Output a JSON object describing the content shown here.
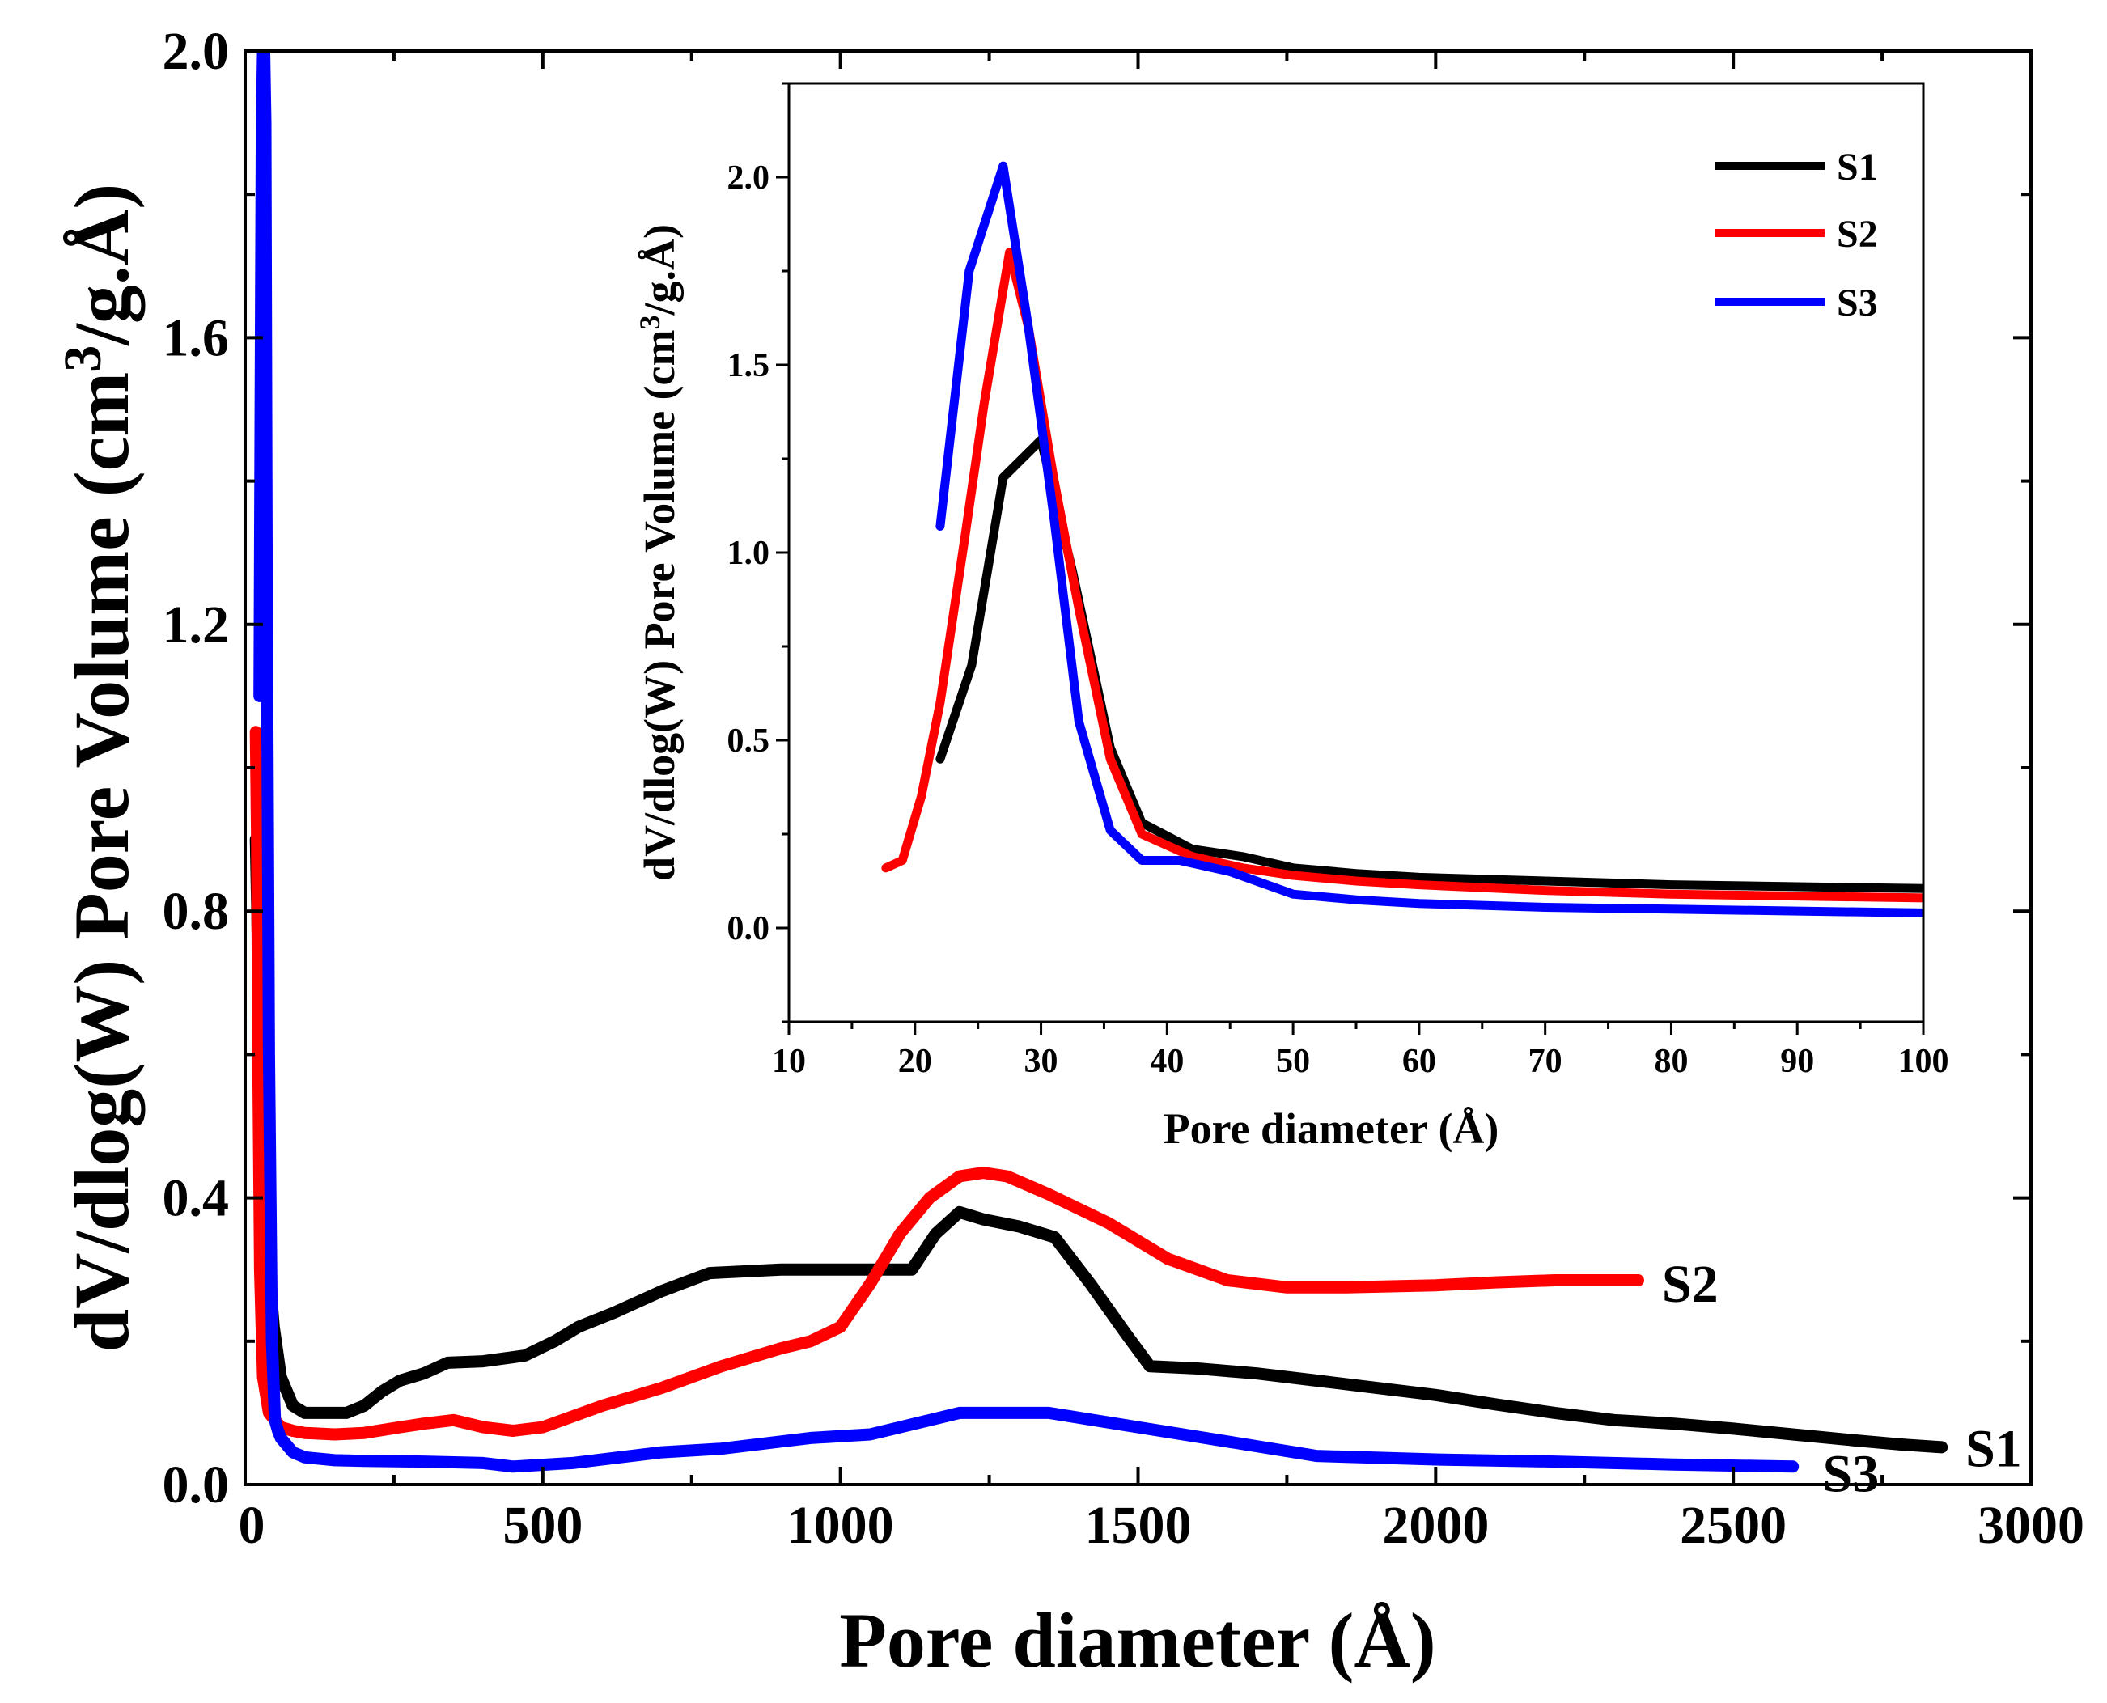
{
  "chart_data": [
    {
      "id": "main",
      "type": "line",
      "xlabel": "Pore diameter (Å)",
      "ylabel": "dV/dlog(W) Pore Volume (cm3/g.Å)",
      "ylabel_parts": {
        "pre": "dV/dlog(W) Pore Volume (cm",
        "sup": "3",
        "post": "/g.Å)"
      },
      "xlim": [
        0,
        3000
      ],
      "ylim": [
        0,
        2.0
      ],
      "xticks": [
        0,
        500,
        1000,
        1500,
        2000,
        2500,
        3000
      ],
      "xtick_labels": [
        "0",
        "500",
        "1000",
        "1500",
        "2000",
        "2500",
        "3000"
      ],
      "yticks": [
        0.0,
        0.4,
        0.8,
        1.2,
        1.6,
        2.0
      ],
      "ytick_labels": [
        "0.0",
        "0.4",
        "0.8",
        "1.2",
        "1.6",
        "2.0"
      ],
      "curve_labels": [
        {
          "series": "S2",
          "text": "S2",
          "at": [
            2380,
            0.28
          ]
        },
        {
          "series": "S1",
          "text": "S1",
          "at": [
            2890,
            0.05
          ]
        },
        {
          "series": "S3",
          "text": "S3",
          "at": [
            2650,
            0.015
          ]
        }
      ],
      "series": [
        {
          "name": "S1",
          "color": "#000000",
          "x": [
            18,
            25,
            32,
            40,
            48,
            60,
            80,
            100,
            170,
            200,
            230,
            260,
            300,
            340,
            400,
            470,
            520,
            560,
            620,
            700,
            780,
            900,
            1000,
            1120,
            1160,
            1200,
            1240,
            1300,
            1360,
            1420,
            1480,
            1520,
            1600,
            1700,
            1800,
            1900,
            2000,
            2100,
            2200,
            2300,
            2400,
            2500,
            2600,
            2700,
            2780,
            2850
          ],
          "y": [
            0.9,
            0.6,
            0.45,
            0.3,
            0.22,
            0.15,
            0.11,
            0.1,
            0.1,
            0.11,
            0.13,
            0.145,
            0.155,
            0.17,
            0.172,
            0.18,
            0.2,
            0.22,
            0.24,
            0.27,
            0.295,
            0.3,
            0.3,
            0.3,
            0.35,
            0.38,
            0.37,
            0.36,
            0.345,
            0.28,
            0.21,
            0.165,
            0.162,
            0.155,
            0.145,
            0.135,
            0.125,
            0.112,
            0.1,
            0.09,
            0.085,
            0.078,
            0.07,
            0.062,
            0.056,
            0.052
          ]
        },
        {
          "name": "S2",
          "color": "#ff0000",
          "x": [
            18,
            20,
            22,
            25,
            30,
            40,
            60,
            80,
            100,
            150,
            200,
            260,
            300,
            350,
            400,
            450,
            500,
            550,
            600,
            700,
            800,
            900,
            950,
            1000,
            1050,
            1100,
            1150,
            1200,
            1240,
            1280,
            1350,
            1450,
            1550,
            1650,
            1750,
            1850,
            2000,
            2100,
            2200,
            2340
          ],
          "y": [
            1.05,
            0.9,
            0.6,
            0.3,
            0.15,
            0.1,
            0.08,
            0.075,
            0.072,
            0.07,
            0.072,
            0.08,
            0.085,
            0.09,
            0.08,
            0.075,
            0.08,
            0.095,
            0.11,
            0.135,
            0.165,
            0.19,
            0.2,
            0.22,
            0.28,
            0.35,
            0.4,
            0.43,
            0.435,
            0.43,
            0.405,
            0.365,
            0.315,
            0.285,
            0.275,
            0.275,
            0.278,
            0.282,
            0.285,
            0.285
          ]
        },
        {
          "name": "S3",
          "color": "#0000ff",
          "x": [
            24,
            26,
            28,
            30,
            32,
            34,
            36,
            40,
            45,
            50,
            55,
            60,
            70,
            80,
            100,
            150,
            200,
            300,
            400,
            450,
            550,
            700,
            800,
            900,
            950,
            1050,
            1150,
            1200,
            1300,
            1350,
            1500,
            1650,
            1800,
            2000,
            2200,
            2400,
            2600
          ],
          "y": [
            1.1,
            1.5,
            1.9,
            2.0,
            2.0,
            1.9,
            1.3,
            0.6,
            0.2,
            0.09,
            0.075,
            0.065,
            0.055,
            0.045,
            0.038,
            0.034,
            0.033,
            0.032,
            0.03,
            0.025,
            0.03,
            0.045,
            0.05,
            0.06,
            0.065,
            0.07,
            0.09,
            0.1,
            0.1,
            0.1,
            0.08,
            0.06,
            0.04,
            0.035,
            0.032,
            0.028,
            0.025
          ]
        }
      ]
    },
    {
      "id": "inset",
      "type": "line",
      "xlabel": "Pore diameter (Å)",
      "ylabel": "dV/dlog(W) Pore Volume (cm3/g.Å)",
      "ylabel_parts": {
        "pre": "dV/dlog(W) Pore Volume (cm",
        "sup": "3",
        "post": "/g.Å)"
      },
      "xlim": [
        10,
        100
      ],
      "ylim": [
        -0.25,
        2.25
      ],
      "xticks": [
        10,
        20,
        30,
        40,
        50,
        60,
        70,
        80,
        90,
        100
      ],
      "xtick_labels": [
        "10",
        "20",
        "30",
        "40",
        "50",
        "60",
        "70",
        "80",
        "90",
        "100"
      ],
      "yticks": [
        0.0,
        0.5,
        1.0,
        1.5,
        2.0
      ],
      "ytick_labels": [
        "0.0",
        "0.5",
        "1.0",
        "1.5",
        "2.0"
      ],
      "legend": {
        "position": "top-right",
        "entries": [
          "S1",
          "S2",
          "S3"
        ]
      },
      "series": [
        {
          "name": "S1",
          "color": "#000000",
          "x": [
            22,
            24.5,
            27,
            30,
            32.5,
            35.5,
            38,
            42,
            46,
            50,
            55,
            60,
            70,
            80,
            90,
            100
          ],
          "y": [
            0.45,
            0.7,
            1.2,
            1.3,
            0.95,
            0.48,
            0.28,
            0.21,
            0.19,
            0.16,
            0.145,
            0.135,
            0.125,
            0.115,
            0.11,
            0.105
          ]
        },
        {
          "name": "S2",
          "color": "#ff0000",
          "x": [
            17.7,
            19,
            20.5,
            22,
            24,
            25.5,
            27.5,
            29,
            31,
            33,
            35.5,
            38,
            42,
            46,
            50,
            55,
            60,
            70,
            80,
            90,
            100
          ],
          "y": [
            0.16,
            0.18,
            0.35,
            0.6,
            1.05,
            1.4,
            1.8,
            1.6,
            1.2,
            0.85,
            0.45,
            0.25,
            0.19,
            0.16,
            0.14,
            0.125,
            0.115,
            0.1,
            0.09,
            0.085,
            0.08
          ]
        },
        {
          "name": "S3",
          "color": "#0000ff",
          "x": [
            22,
            24.3,
            27,
            29,
            31,
            33,
            35.5,
            38,
            41,
            45,
            50,
            55,
            60,
            70,
            80,
            90,
            100
          ],
          "y": [
            1.07,
            1.75,
            2.03,
            1.6,
            1.1,
            0.55,
            0.26,
            0.18,
            0.18,
            0.15,
            0.09,
            0.075,
            0.065,
            0.055,
            0.05,
            0.045,
            0.04
          ]
        }
      ]
    }
  ]
}
